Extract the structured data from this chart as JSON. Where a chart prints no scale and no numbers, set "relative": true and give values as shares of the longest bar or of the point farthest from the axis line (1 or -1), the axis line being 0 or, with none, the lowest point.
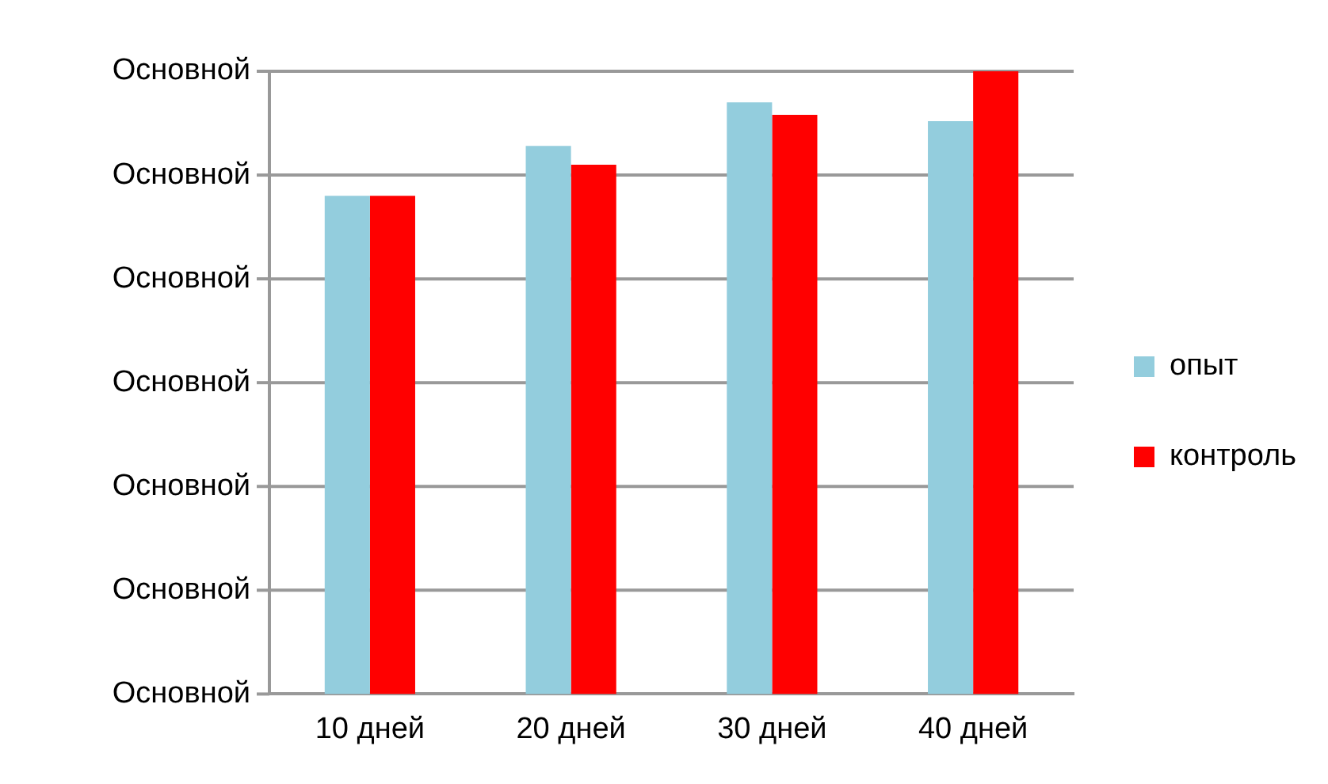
{
  "chart_data": {
    "type": "bar",
    "relative": true,
    "categories": [
      "10 дней",
      "20 дней",
      "30 дней",
      "40 дней"
    ],
    "series": [
      {
        "name": "опыт",
        "color": "#93cddd",
        "values": [
          0.8,
          0.88,
          0.95,
          0.92
        ]
      },
      {
        "name": "контроль",
        "color": "#ff0000",
        "values": [
          0.8,
          0.85,
          0.93,
          1
        ]
      }
    ],
    "annotations": [
      "Основной",
      "Основной",
      "Основной",
      "Основной",
      "Основной",
      "Основной",
      "Основной"
    ],
    "grid": "y",
    "legend": "right"
  }
}
